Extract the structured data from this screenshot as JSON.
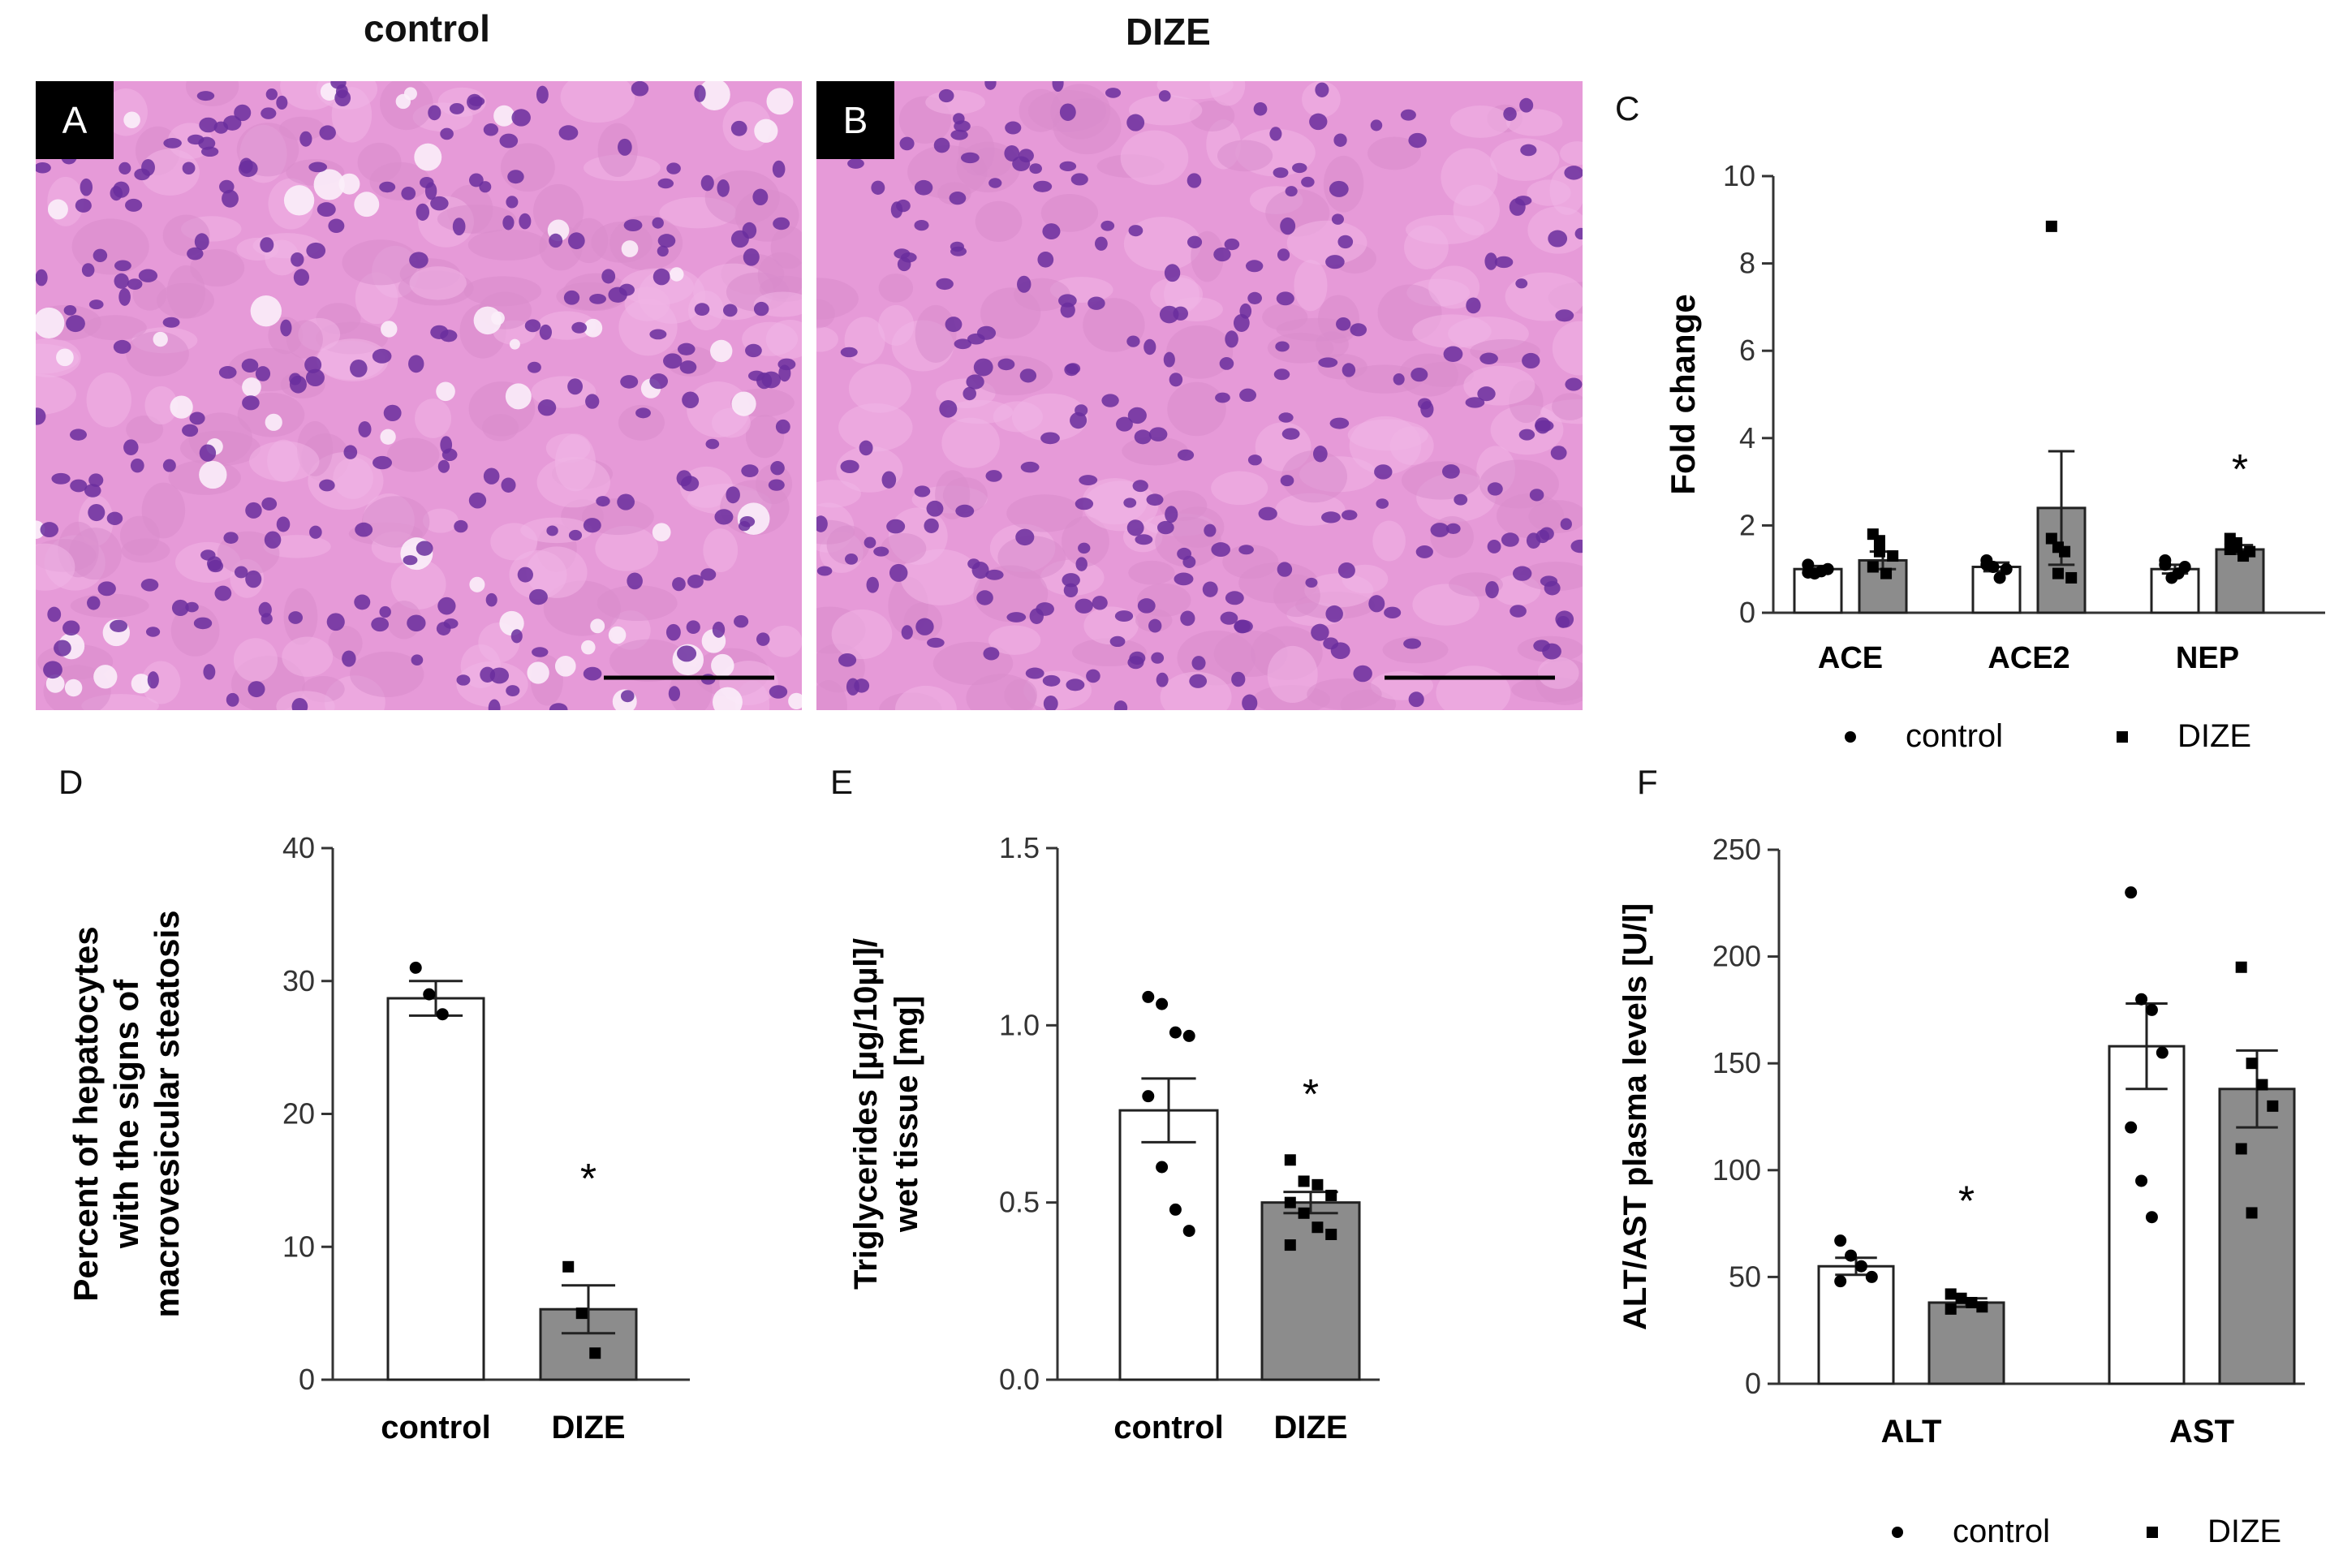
{
  "panels": {
    "A": {
      "label": "A",
      "group_title": "control"
    },
    "B": {
      "label": "B",
      "group_title": "DIZE"
    },
    "C": {
      "label": "C"
    },
    "D": {
      "label": "D"
    },
    "E": {
      "label": "E"
    },
    "F": {
      "label": "F"
    }
  },
  "colors": {
    "control_bar": "#ffffff",
    "dize_bar": "#8c8c8c",
    "axis": "#333333",
    "tissue_bg": "#e69ad8",
    "nucleus": "#6a2e9e"
  },
  "chart_data": [
    {
      "id": "C",
      "type": "bar",
      "ylabel": "Fold change",
      "ylim": [
        0,
        10
      ],
      "yticks": [
        0,
        2,
        4,
        6,
        8,
        10
      ],
      "categories": [
        "ACE",
        "ACE2",
        "NEP"
      ],
      "series": [
        {
          "name": "control",
          "values": [
            1.0,
            1.05,
            1.0
          ],
          "sem": [
            0.07,
            0.1,
            0.1
          ],
          "points": [
            [
              1.1,
              0.9,
              0.95,
              1.0,
              0.92
            ],
            [
              1.1,
              1.05,
              0.8,
              1.0,
              1.2
            ],
            [
              1.2,
              0.8,
              0.9,
              1.05,
              1.1
            ]
          ]
        },
        {
          "name": "DIZE",
          "values": [
            1.2,
            2.4,
            1.45
          ],
          "sem": [
            0.2,
            1.3,
            0.1
          ],
          "points": [
            [
              1.8,
              1.65,
              0.9,
              1.3,
              1.05,
              1.4
            ],
            [
              8.85,
              1.5,
              1.4,
              0.8,
              1.7,
              0.9
            ],
            [
              1.7,
              1.6,
              1.3,
              1.4,
              1.45,
              1.5
            ]
          ]
        }
      ],
      "annotations": [
        {
          "category": "NEP",
          "text": "*",
          "y": 3.4
        }
      ],
      "legend": {
        "position": "bottom",
        "entries": [
          "control",
          "DIZE"
        ]
      }
    },
    {
      "id": "D",
      "type": "bar",
      "ylabel_lines": [
        "Percent of hepatocytes",
        "with the signs of",
        "macrovesicular steatosis"
      ],
      "ylim": [
        0,
        40
      ],
      "yticks": [
        0,
        10,
        20,
        30,
        40
      ],
      "categories": [
        "control",
        "DIZE"
      ],
      "values": [
        28.7,
        5.3
      ],
      "sem": [
        1.3,
        1.8
      ],
      "points": [
        [
          31.0,
          29.0,
          27.5
        ],
        [
          8.5,
          5.0,
          2.0
        ]
      ],
      "annotations": [
        {
          "category": "DIZE",
          "text": "*",
          "y": 15.5
        }
      ]
    },
    {
      "id": "E",
      "type": "bar",
      "ylabel_lines": [
        "Triglycerides [µg/10µl]/",
        "wet tissue [mg]"
      ],
      "ylim": [
        0,
        1.5
      ],
      "yticks": [
        "0.0",
        "0.5",
        "1.0",
        "1.5"
      ],
      "categories": [
        "control",
        "DIZE"
      ],
      "values": [
        0.76,
        0.5
      ],
      "sem": [
        0.09,
        0.03
      ],
      "points": [
        [
          1.08,
          1.06,
          0.98,
          0.97,
          0.8,
          0.6,
          0.48,
          0.42
        ],
        [
          0.62,
          0.56,
          0.55,
          0.52,
          0.5,
          0.47,
          0.43,
          0.41,
          0.38
        ]
      ],
      "annotations": [
        {
          "category": "DIZE",
          "text": "*",
          "y": 0.82
        }
      ]
    },
    {
      "id": "F",
      "type": "bar",
      "ylabel": "ALT/AST plasma levels [U/l]",
      "ylim": [
        0,
        250
      ],
      "yticks": [
        0,
        50,
        100,
        150,
        200,
        250
      ],
      "categories": [
        "ALT",
        "AST"
      ],
      "series": [
        {
          "name": "control",
          "values": [
            55,
            158
          ],
          "sem": [
            4,
            20
          ],
          "points": [
            [
              67,
              60,
              55,
              50,
              48
            ],
            [
              230,
              180,
              175,
              155,
              120,
              95,
              78
            ]
          ]
        },
        {
          "name": "DIZE",
          "values": [
            38,
            138
          ],
          "sem": [
            2,
            18
          ],
          "points": [
            [
              42,
              40,
              38,
              36,
              35
            ],
            [
              195,
              150,
              140,
              130,
              110,
              80
            ]
          ]
        }
      ],
      "annotations": [
        {
          "category": "ALT",
          "series": "DIZE",
          "text": "*",
          "y": 88
        }
      ],
      "legend": {
        "position": "bottom",
        "entries": [
          "control",
          "DIZE"
        ]
      }
    }
  ]
}
